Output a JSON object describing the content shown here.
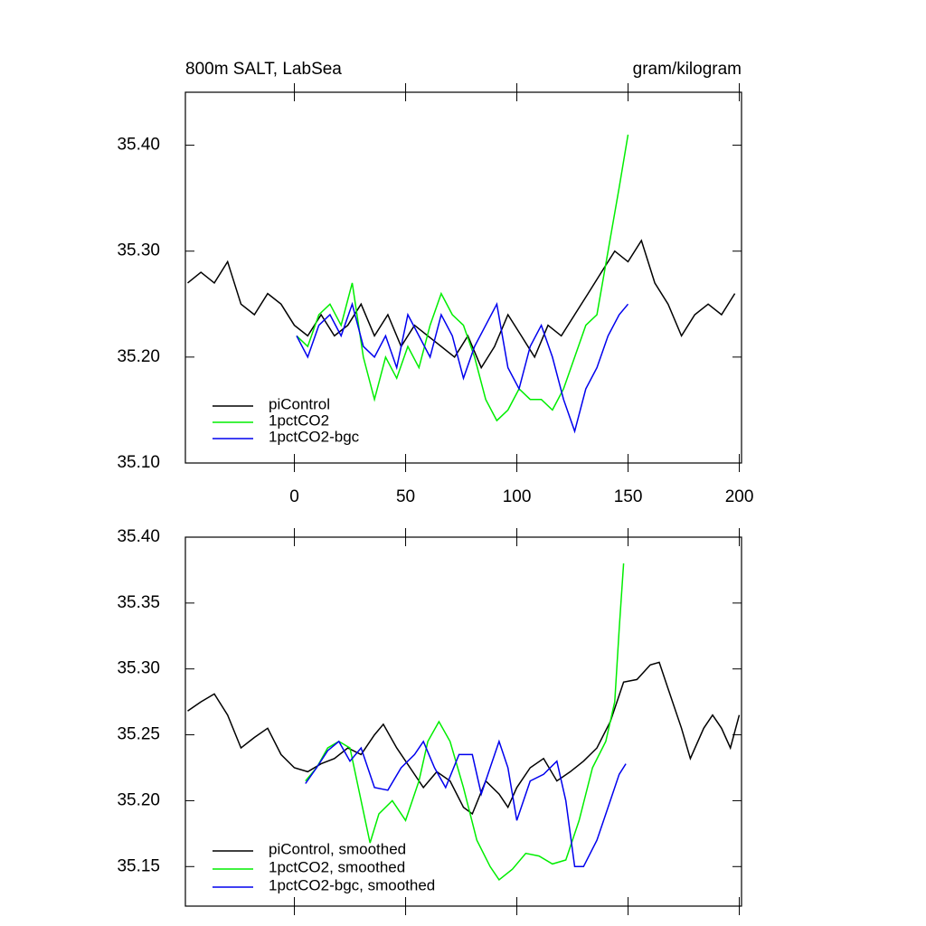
{
  "chart_data": [
    {
      "type": "line",
      "title": "800m SALT, LabSea",
      "units": "gram/kilogram",
      "xlim": [
        -49,
        201
      ],
      "xticks": [
        0,
        50,
        100,
        150,
        200
      ],
      "ylim": [
        35.1,
        35.45
      ],
      "yticks": [
        {
          "value": 35.1,
          "label": "35.10"
        },
        {
          "value": 35.2,
          "label": "35.20"
        },
        {
          "value": 35.3,
          "label": "35.30"
        },
        {
          "value": 35.4,
          "label": "35.40"
        }
      ],
      "legend": "lower left",
      "series": [
        {
          "name": "piControl",
          "color": "#000000",
          "x": [
            -48,
            -42,
            -36,
            -30,
            -24,
            -18,
            -12,
            -6,
            0,
            6,
            12,
            18,
            24,
            30,
            36,
            42,
            48,
            54,
            60,
            66,
            72,
            78,
            84,
            90,
            96,
            102,
            108,
            114,
            120,
            126,
            132,
            138,
            144,
            150,
            156,
            162,
            168,
            174,
            180,
            186,
            192,
            198
          ],
          "values": [
            35.27,
            35.28,
            35.27,
            35.29,
            35.25,
            35.24,
            35.26,
            35.25,
            35.23,
            35.22,
            35.24,
            35.22,
            35.23,
            35.25,
            35.22,
            35.24,
            35.21,
            35.23,
            35.22,
            35.21,
            35.2,
            35.22,
            35.19,
            35.21,
            35.24,
            35.22,
            35.2,
            35.23,
            35.22,
            35.24,
            35.26,
            35.28,
            35.3,
            35.29,
            35.31,
            35.27,
            35.25,
            35.22,
            35.24,
            35.25,
            35.24,
            35.26
          ]
        },
        {
          "name": "1pctCO2",
          "color": "#00ee00",
          "x": [
            1,
            6,
            11,
            16,
            21,
            26,
            31,
            36,
            41,
            46,
            51,
            56,
            61,
            66,
            71,
            76,
            81,
            86,
            91,
            96,
            101,
            106,
            111,
            116,
            121,
            126,
            131,
            136,
            141,
            146,
            150
          ],
          "values": [
            35.22,
            35.21,
            35.24,
            35.25,
            35.23,
            35.27,
            35.2,
            35.16,
            35.2,
            35.18,
            35.21,
            35.19,
            35.23,
            35.26,
            35.24,
            35.23,
            35.2,
            35.16,
            35.14,
            35.15,
            35.17,
            35.16,
            35.16,
            35.15,
            35.17,
            35.2,
            35.23,
            35.24,
            35.3,
            35.36,
            35.41
          ]
        },
        {
          "name": "1pctCO2-bgc",
          "color": "#0000ee",
          "x": [
            1,
            6,
            11,
            16,
            21,
            26,
            31,
            36,
            41,
            46,
            51,
            56,
            61,
            66,
            71,
            76,
            81,
            86,
            91,
            96,
            101,
            106,
            111,
            116,
            121,
            126,
            131,
            136,
            141,
            146,
            150
          ],
          "values": [
            35.22,
            35.2,
            35.23,
            35.24,
            35.22,
            35.25,
            35.21,
            35.2,
            35.22,
            35.19,
            35.24,
            35.22,
            35.2,
            35.24,
            35.22,
            35.18,
            35.21,
            35.23,
            35.25,
            35.19,
            35.17,
            35.21,
            35.23,
            35.2,
            35.16,
            35.13,
            35.17,
            35.19,
            35.22,
            35.24,
            35.25
          ]
        }
      ]
    },
    {
      "type": "line",
      "xlim": [
        -49,
        201
      ],
      "xticks": [
        0,
        50,
        100,
        150,
        200
      ],
      "ylim": [
        35.12,
        35.4
      ],
      "yticks": [
        {
          "value": 35.15,
          "label": "35.15"
        },
        {
          "value": 35.2,
          "label": "35.20"
        },
        {
          "value": 35.25,
          "label": "35.25"
        },
        {
          "value": 35.3,
          "label": "35.30"
        },
        {
          "value": 35.35,
          "label": "35.35"
        },
        {
          "value": 35.4,
          "label": "35.40"
        }
      ],
      "legend": "lower left",
      "series": [
        {
          "name": "piControl, smoothed",
          "color": "#000000",
          "x": [
            -48,
            -42,
            -36,
            -30,
            -24,
            -18,
            -12,
            -6,
            0,
            6,
            12,
            18,
            24,
            30,
            36,
            40,
            46,
            52,
            58,
            64,
            70,
            76,
            80,
            86,
            92,
            96,
            100,
            106,
            112,
            118,
            124,
            130,
            136,
            142,
            148,
            154,
            160,
            164,
            168,
            174,
            178,
            184,
            188,
            192,
            196,
            200
          ],
          "values": [
            35.268,
            35.275,
            35.281,
            35.265,
            35.24,
            35.248,
            35.255,
            35.235,
            35.225,
            35.222,
            35.228,
            35.232,
            35.24,
            35.235,
            35.25,
            35.258,
            35.24,
            35.225,
            35.21,
            35.222,
            35.215,
            35.195,
            35.19,
            35.215,
            35.205,
            35.195,
            35.21,
            35.225,
            35.232,
            35.215,
            35.222,
            35.23,
            35.24,
            35.26,
            35.29,
            35.292,
            35.303,
            35.305,
            35.285,
            35.255,
            35.232,
            35.255,
            35.265,
            35.255,
            35.24,
            35.265
          ]
        },
        {
          "name": "1pctCO2, smoothed",
          "color": "#00ee00",
          "x": [
            5,
            10,
            15,
            20,
            25,
            30,
            34,
            38,
            44,
            50,
            56,
            60,
            65,
            70,
            76,
            82,
            88,
            92,
            98,
            104,
            110,
            116,
            122,
            128,
            134,
            140,
            144,
            146,
            148
          ],
          "values": [
            35.215,
            35.225,
            35.24,
            35.245,
            35.24,
            35.2,
            35.168,
            35.19,
            35.2,
            35.185,
            35.215,
            35.245,
            35.26,
            35.245,
            35.21,
            35.17,
            35.15,
            35.14,
            35.148,
            35.16,
            35.158,
            35.152,
            35.155,
            35.185,
            35.225,
            35.245,
            35.275,
            35.33,
            35.38
          ]
        },
        {
          "name": "1pctCO2-bgc, smoothed",
          "color": "#0000ee",
          "x": [
            5,
            10,
            15,
            20,
            25,
            30,
            36,
            42,
            48,
            54,
            58,
            63,
            68,
            74,
            80,
            84,
            88,
            92,
            96,
            100,
            106,
            112,
            118,
            122,
            126,
            130,
            136,
            142,
            146,
            149
          ],
          "values": [
            35.213,
            35.225,
            35.238,
            35.245,
            35.23,
            35.24,
            35.21,
            35.208,
            35.225,
            35.235,
            35.245,
            35.225,
            35.21,
            35.235,
            35.235,
            35.205,
            35.225,
            35.245,
            35.225,
            35.185,
            35.215,
            35.22,
            35.23,
            35.2,
            35.15,
            35.15,
            35.17,
            35.2,
            35.22,
            35.228
          ]
        }
      ]
    }
  ]
}
